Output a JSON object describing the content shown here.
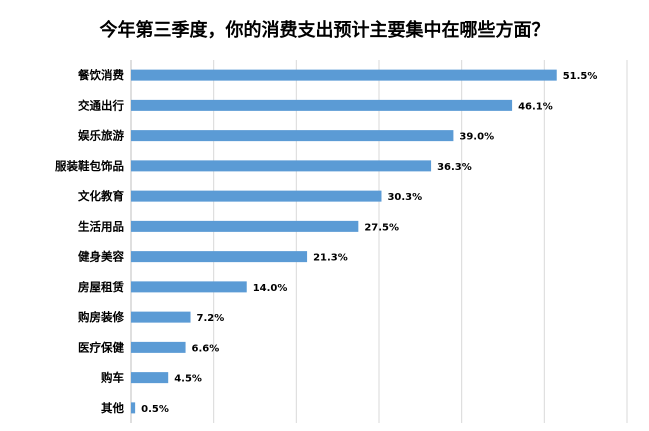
{
  "chart_data": {
    "type": "bar",
    "orientation": "horizontal",
    "title": "今年第三季度，你的消费支出预计主要集中在哪些方面？",
    "categories": [
      "餐饮消费",
      "交通出行",
      "娱乐旅游",
      "服装鞋包饰品",
      "文化教育",
      "生活用品",
      "健身美容",
      "房屋租赁",
      "购房装修",
      "医疗保健",
      "购车",
      "其他"
    ],
    "values": [
      51.5,
      46.1,
      39.0,
      36.3,
      30.3,
      27.5,
      21.3,
      14.0,
      7.2,
      6.6,
      4.5,
      0.5
    ],
    "value_labels": [
      "51.5%",
      "46.1%",
      "39.0%",
      "36.3%",
      "30.3%",
      "27.5%",
      "21.3%",
      "14.0%",
      "7.2%",
      "6.6%",
      "4.5%",
      "0.5%"
    ],
    "xlim": [
      0,
      60
    ],
    "grid": "vertical",
    "bar_color": "#5b9bd5"
  }
}
